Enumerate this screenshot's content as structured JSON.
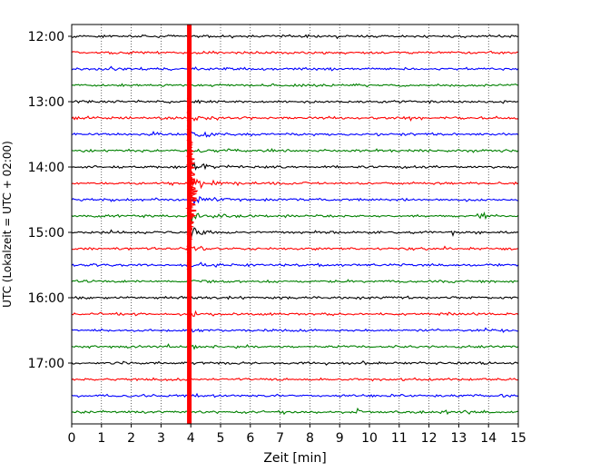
{
  "chart_data": {
    "type": "line",
    "title": "",
    "xlabel": "Zeit  [min]",
    "ylabel": "UTC (Lokalzeit = UTC + 02:00)",
    "xlim": [
      0,
      15
    ],
    "x_ticks": [
      0,
      1,
      2,
      3,
      4,
      5,
      6,
      7,
      8,
      9,
      10,
      11,
      12,
      13,
      14,
      15
    ],
    "x_grid": "dotted vertical lines at every minute",
    "row_interval_minutes": 15,
    "rows_start": "12:00",
    "row_count": 24,
    "y_ticks": [
      {
        "label": "12:00",
        "row": 0
      },
      {
        "label": "13:00",
        "row": 4
      },
      {
        "label": "14:00",
        "row": 8
      },
      {
        "label": "15:00",
        "row": 12
      },
      {
        "label": "16:00",
        "row": 16
      },
      {
        "label": "17:00",
        "row": 20
      }
    ],
    "trace_colors": [
      "#000000",
      "#ff0000",
      "#0000ff",
      "#008000"
    ],
    "event": {
      "onset_minute": 3.95,
      "color": "#ff0000",
      "description_rows": "large red vertical band across all rows near minute 4; strongest coda in rows 7-13"
    },
    "local_bursts": [
      {
        "row": 11,
        "minute": 13.8,
        "color": "#008000"
      },
      {
        "row": 23,
        "minute": 9.65,
        "color": "#008000"
      },
      {
        "row": 23,
        "minute": 12.6,
        "color": "#008000"
      },
      {
        "row": 23,
        "minute": 13.2,
        "color": "#008000"
      }
    ]
  }
}
